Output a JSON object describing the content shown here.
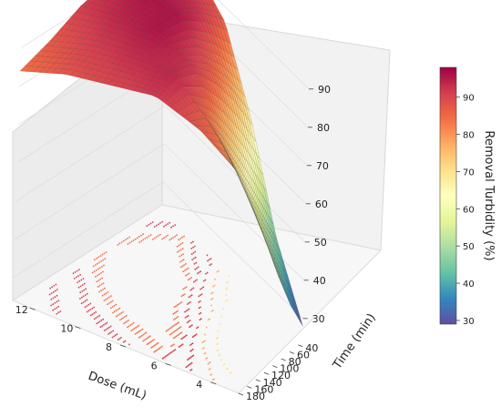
{
  "chart_data": {
    "type": "surface3d",
    "title": "",
    "x_axis": {
      "label": "Dose (mL)",
      "ticks": [
        4,
        6,
        8,
        10,
        12
      ],
      "range": [
        3,
        13
      ]
    },
    "y_axis": {
      "label": "Time (min)",
      "ticks": [
        40,
        60,
        80,
        100,
        120,
        140,
        160,
        180
      ],
      "range": [
        30,
        180
      ]
    },
    "z_axis": {
      "ticks": [
        30,
        40,
        50,
        60,
        70,
        80,
        90
      ],
      "range": [
        24,
        99
      ]
    },
    "colorbar": {
      "label": "Removal Turbidity (%)",
      "ticks": [
        30,
        40,
        50,
        60,
        70,
        80,
        90
      ],
      "colormap": "Spectral_r",
      "range": [
        29,
        98
      ]
    },
    "grid": true,
    "surface_samples": {
      "dose": [
        3,
        5,
        7,
        9,
        11,
        13
      ],
      "time": [
        30,
        60,
        90,
        120,
        150,
        180
      ],
      "removal": [
        [
          28,
          36,
          46,
          58,
          72,
          80
        ],
        [
          44,
          54,
          64,
          74,
          84,
          88
        ],
        [
          68,
          78,
          86,
          92,
          94,
          92
        ],
        [
          86,
          92,
          96,
          96,
          93,
          90
        ],
        [
          92,
          95,
          96,
          94,
          91,
          88
        ],
        [
          88,
          91,
          93,
          91,
          87,
          84
        ]
      ]
    },
    "contour_projection": true
  }
}
